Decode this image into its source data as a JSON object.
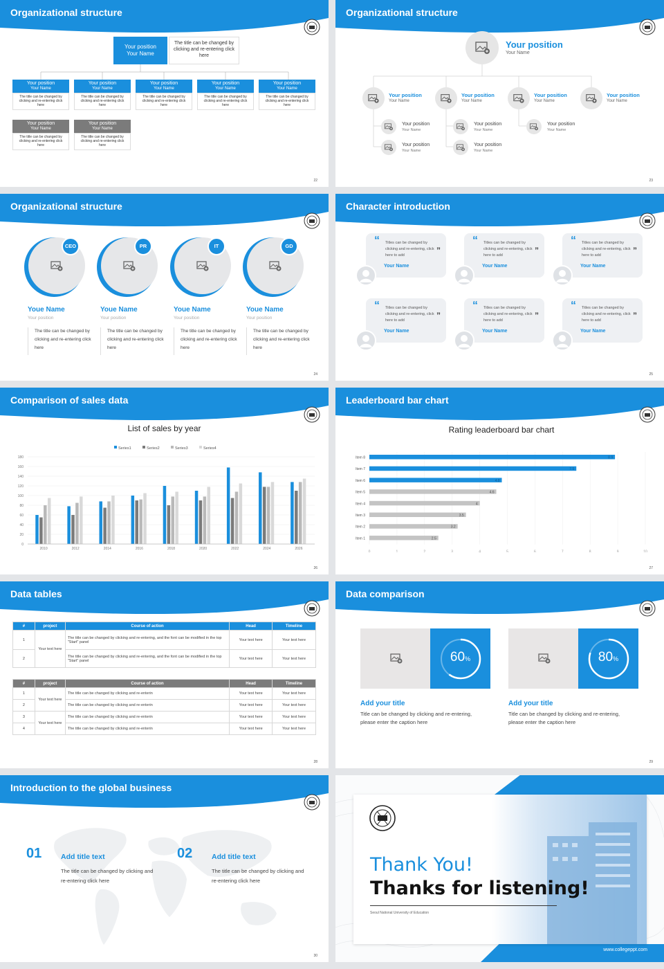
{
  "colors": {
    "accent": "#1a8fdd",
    "gray": "#7b7b7b",
    "light_gray": "#c4c4c4"
  },
  "slides": {
    "s22": {
      "title": "Organizational structure",
      "page": "22",
      "top": {
        "line1": "Your position",
        "line2": "Your Name",
        "desc": "The title can be changed by clicking and re-entering click here"
      },
      "nodes": [
        {
          "position": "Your position",
          "name": "Your Name",
          "desc": "The title can be changed by clicking and re-entering click here"
        },
        {
          "position": "Your position",
          "name": "Your Name",
          "desc": "The title can be changed by clicking and re-entering click here"
        },
        {
          "position": "Your position",
          "name": "Your Name",
          "desc": "The title can be changed by clicking and re-entering click here"
        },
        {
          "position": "Your position",
          "name": "Your Name",
          "desc": "The title can be changed by clicking and re-entering click here"
        },
        {
          "position": "Your position",
          "name": "Your Name",
          "desc": "The title can be changed by clicking and re-entering click here"
        },
        {
          "position": "Your position",
          "name": "Your Name",
          "desc": "The title can be changed by clicking and re-entering click here"
        },
        {
          "position": "Your position",
          "name": "Your Name",
          "desc": "The title can be changed by clicking and re-entering click here"
        }
      ]
    },
    "s23": {
      "title": "Organizational structure",
      "page": "23",
      "top": {
        "position": "Your position",
        "name": "Your Name"
      },
      "level1": [
        {
          "position": "Your position",
          "name": "Your Name"
        },
        {
          "position": "Your position",
          "name": "Your Name"
        },
        {
          "position": "Your position",
          "name": "Your Name"
        },
        {
          "position": "Your position",
          "name": "Your Name"
        }
      ],
      "level2": [
        {
          "position": "Your position",
          "name": "Your Name"
        },
        {
          "position": "Your position",
          "name": "Your Name"
        },
        {
          "position": "Your position",
          "name": "Your Name"
        },
        {
          "position": "Your position",
          "name": "Your Name"
        },
        {
          "position": "Your position",
          "name": "Your Name"
        }
      ]
    },
    "s24": {
      "title": "Organizational structure",
      "page": "24",
      "people": [
        {
          "badge": "CEO",
          "name": "Youe Name",
          "position": "Your position",
          "desc": "The title can be changed by clicking and re-entering click here"
        },
        {
          "badge": "PR",
          "name": "Youe Name",
          "position": "Your position",
          "desc": "The title can be changed by clicking and re-entering click here"
        },
        {
          "badge": "IT",
          "name": "Youe Name",
          "position": "Your position",
          "desc": "The title can be changed by clicking and re-entering click here"
        },
        {
          "badge": "GD",
          "name": "Youe Name",
          "position": "Your position",
          "desc": "The title can be changed by clicking and re-entering click here"
        }
      ]
    },
    "s25": {
      "title": "Character introduction",
      "page": "25",
      "quote_open": "“",
      "quote_close": "”",
      "cards": [
        {
          "text": "Titles can be changed by clicking and re-entering, click here to add",
          "name": "Your Name"
        },
        {
          "text": "Titles can be changed by clicking and re-entering, click here to add",
          "name": "Your Name"
        },
        {
          "text": "Titles can be changed by clicking and re-entering, click here to add",
          "name": "Your Name"
        },
        {
          "text": "Titles can be changed by clicking and re-entering, click here to add",
          "name": "Your Name"
        },
        {
          "text": "Titles can be changed by clicking and re-entering, click here to add",
          "name": "Your Name"
        },
        {
          "text": "Titles can be changed by clicking and re-entering, click here to add",
          "name": "Your Name"
        }
      ]
    },
    "s26": {
      "title": "Comparison of sales data",
      "page": "26"
    },
    "s27": {
      "title": "Leaderboard bar chart",
      "page": "27"
    },
    "s28": {
      "title": "Data tables",
      "page": "28",
      "t1": {
        "headers": [
          "#",
          "project",
          "Course of action",
          "Head",
          "Timeline"
        ],
        "rows": [
          {
            "num": "1",
            "project": "Your text here",
            "action": "The title can be changed by clicking and re-entering, and the font can be modified in the top \"Start\" panel",
            "head": "Your text here",
            "timeline": "Your text here"
          },
          {
            "num": "2",
            "project": "",
            "action": "The title can be changed by clicking and re-entering, and the font can be modified in the top \"Start\" panel",
            "head": "Your text here",
            "timeline": "Your text here"
          }
        ]
      },
      "t2": {
        "headers": [
          "#",
          "project",
          "Course of action",
          "Head",
          "Timeline"
        ],
        "rows": [
          {
            "num": "1",
            "project": "Your text here",
            "action": "The title can be changed by clicking and re-enterin",
            "head": "Your text here",
            "timeline": "Your text here"
          },
          {
            "num": "2",
            "project": "",
            "action": "The title can be changed by clicking and re-enterin",
            "head": "Your text here",
            "timeline": "Your text here"
          },
          {
            "num": "3",
            "project": "Your text here",
            "action": "The title can be changed by clicking and re-enterin",
            "head": "Your text here",
            "timeline": "Your text here"
          },
          {
            "num": "4",
            "project": "",
            "action": "The title can be changed by clicking and re-enterin",
            "head": "Your text here",
            "timeline": "Your text here"
          }
        ]
      }
    },
    "s29": {
      "title": "Data comparison",
      "page": "29",
      "items": [
        {
          "percent": "60",
          "unit": "%",
          "value": 0.6,
          "title": "Add your title",
          "desc": "Title can be changed by clicking and re-entering, please enter the caption here"
        },
        {
          "percent": "80",
          "unit": "%",
          "value": 0.8,
          "title": "Add your title",
          "desc": "Title can be changed by clicking and re-entering, please enter the caption here"
        }
      ]
    },
    "s30": {
      "title": "Introduction to the global business",
      "page": "30",
      "items": [
        {
          "num": "01",
          "title": "Add title text",
          "desc": "The title can be changed by clicking and re-entering click here"
        },
        {
          "num": "02",
          "title": "Add title text",
          "desc": "The title can be changed by clicking and re-entering click here"
        }
      ]
    },
    "s31": {
      "line1": "Thank You!",
      "line2": "Thanks for listening!",
      "university": "Seoul National University of Education",
      "website": "www.collegeppt.com"
    }
  },
  "chart_data": [
    {
      "type": "bar",
      "title": "List of sales by year",
      "categories": [
        "2010",
        "2012",
        "2014",
        "2016",
        "2018",
        "2020",
        "2022",
        "2024",
        "2026"
      ],
      "series": [
        {
          "name": "Series1",
          "color": "#1a8fdd",
          "values": [
            60,
            78,
            88,
            100,
            120,
            110,
            158,
            148,
            128
          ]
        },
        {
          "name": "Series2",
          "color": "#7b7b7b",
          "values": [
            55,
            60,
            75,
            90,
            80,
            90,
            95,
            118,
            110
          ]
        },
        {
          "name": "Series3",
          "color": "#b9b9b9",
          "values": [
            80,
            85,
            88,
            92,
            98,
            98,
            108,
            118,
            128
          ]
        },
        {
          "name": "Series4",
          "color": "#d9d9d9",
          "values": [
            95,
            98,
            100,
            105,
            108,
            118,
            125,
            128,
            135
          ]
        }
      ],
      "ylim": [
        0,
        180
      ],
      "yticks": [
        0,
        20,
        40,
        60,
        80,
        100,
        120,
        140,
        160,
        180
      ],
      "legend": "top",
      "grid": true
    },
    {
      "type": "bar",
      "orientation": "horizontal",
      "title": "Rating leaderboard bar chart",
      "categories": [
        "Item 8",
        "Item 7",
        "Item 6",
        "Item 5",
        "Item 4",
        "Item 3",
        "Item 2",
        "Item 1"
      ],
      "values": [
        8.9,
        7.5,
        4.8,
        4.6,
        4,
        3.5,
        3.2,
        2.5
      ],
      "highlight": [
        true,
        true,
        true,
        false,
        false,
        false,
        false,
        false
      ],
      "xlim": [
        0,
        10
      ],
      "xticks": [
        0,
        1,
        2,
        3,
        4,
        5,
        6,
        7,
        8,
        9,
        10
      ],
      "grid": true
    }
  ]
}
